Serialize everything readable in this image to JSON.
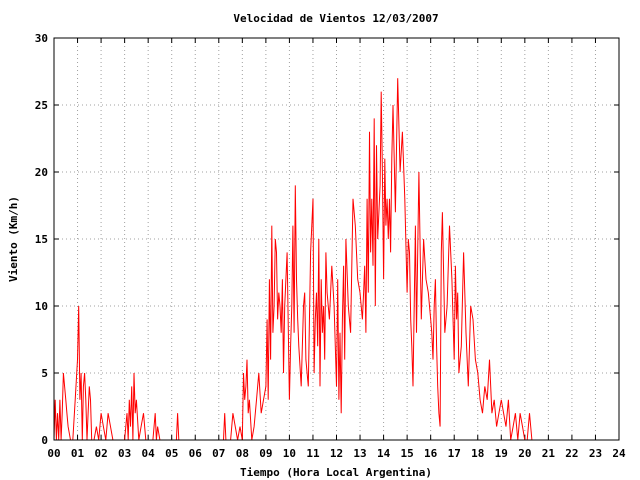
{
  "chart_data": {
    "type": "line",
    "title": "Velocidad de Vientos 12/03/2007",
    "xlabel": "Tiempo (Hora Local Argentina)",
    "ylabel": "Viento (Km/h)",
    "xlim": [
      0,
      24
    ],
    "ylim": [
      0,
      30
    ],
    "xticks": [
      "00",
      "01",
      "02",
      "03",
      "04",
      "05",
      "06",
      "07",
      "08",
      "09",
      "10",
      "11",
      "12",
      "13",
      "14",
      "15",
      "16",
      "17",
      "18",
      "19",
      "20",
      "21",
      "22",
      "23",
      "24"
    ],
    "yticks": [
      "0",
      "5",
      "10",
      "15",
      "20",
      "25",
      "30"
    ],
    "grid": true,
    "legend": "none",
    "series": [
      {
        "color": "#ff0000",
        "x": [
          0.0,
          0.05,
          0.1,
          0.15,
          0.2,
          0.25,
          0.3,
          0.35,
          0.4,
          0.45,
          0.5,
          0.55,
          0.6,
          0.7,
          0.8,
          0.9,
          1.0,
          1.05,
          1.1,
          1.15,
          1.2,
          1.25,
          1.3,
          1.35,
          1.4,
          1.45,
          1.5,
          1.55,
          1.6,
          1.7,
          1.8,
          1.9,
          2.0,
          2.1,
          2.2,
          2.3,
          2.5,
          2.8,
          3.0,
          3.1,
          3.15,
          3.2,
          3.25,
          3.3,
          3.35,
          3.4,
          3.45,
          3.5,
          3.6,
          3.7,
          3.8,
          3.9,
          4.0,
          4.2,
          4.3,
          4.35,
          4.4,
          4.5,
          4.8,
          5.0,
          5.2,
          5.25,
          5.3,
          5.6,
          6.0,
          6.4,
          6.8,
          7.0,
          7.2,
          7.25,
          7.3,
          7.5,
          7.6,
          7.8,
          7.9,
          8.0,
          8.05,
          8.1,
          8.15,
          8.2,
          8.25,
          8.3,
          8.4,
          8.5,
          8.6,
          8.7,
          8.8,
          8.9,
          9.0,
          9.05,
          9.1,
          9.15,
          9.2,
          9.25,
          9.3,
          9.35,
          9.4,
          9.45,
          9.5,
          9.55,
          9.6,
          9.65,
          9.7,
          9.75,
          9.8,
          9.9,
          10.0,
          10.05,
          10.1,
          10.15,
          10.2,
          10.25,
          10.3,
          10.35,
          10.4,
          10.5,
          10.6,
          10.65,
          10.7,
          10.8,
          10.9,
          11.0,
          11.05,
          11.1,
          11.15,
          11.2,
          11.25,
          11.3,
          11.35,
          11.4,
          11.45,
          11.5,
          11.55,
          11.6,
          11.7,
          11.8,
          11.9,
          12.0,
          12.05,
          12.1,
          12.15,
          12.2,
          12.25,
          12.3,
          12.35,
          12.4,
          12.5,
          12.6,
          12.7,
          12.8,
          12.9,
          13.0,
          13.05,
          13.1,
          13.15,
          13.2,
          13.25,
          13.3,
          13.35,
          13.4,
          13.45,
          13.5,
          13.55,
          13.6,
          13.65,
          13.7,
          13.75,
          13.8,
          13.85,
          13.9,
          13.95,
          14.0,
          14.05,
          14.1,
          14.15,
          14.2,
          14.25,
          14.3,
          14.35,
          14.4,
          14.5,
          14.6,
          14.7,
          14.8,
          14.9,
          15.0,
          15.05,
          15.1,
          15.15,
          15.2,
          15.25,
          15.3,
          15.35,
          15.4,
          15.5,
          15.6,
          15.7,
          15.8,
          15.9,
          16.0,
          16.05,
          16.1,
          16.15,
          16.2,
          16.25,
          16.3,
          16.35,
          16.4,
          16.45,
          16.5,
          16.6,
          16.7,
          16.8,
          16.9,
          17.0,
          17.05,
          17.1,
          17.15,
          17.2,
          17.3,
          17.4,
          17.5,
          17.6,
          17.7,
          17.8,
          17.9,
          18.0,
          18.1,
          18.2,
          18.3,
          18.4,
          18.5,
          18.6,
          18.7,
          18.8,
          18.9,
          19.0,
          19.1,
          19.2,
          19.3,
          19.4,
          19.5,
          19.6,
          19.7,
          19.8,
          19.9,
          20.0,
          20.1,
          20.2,
          20.3
        ],
        "y": [
          0,
          3,
          0,
          2,
          0,
          3,
          0,
          2,
          5,
          4,
          3,
          2,
          1,
          0,
          0,
          3,
          6,
          10,
          3,
          5,
          0,
          4,
          5,
          3,
          0,
          2,
          4,
          3,
          0,
          0,
          1,
          0,
          2,
          1,
          0,
          2,
          0,
          0,
          0,
          2,
          0,
          3,
          1,
          4,
          0,
          5,
          2,
          3,
          0,
          1,
          2,
          0,
          0,
          0,
          2,
          0,
          1,
          0,
          0,
          0,
          0,
          2,
          0,
          0,
          0,
          0,
          0,
          0,
          0,
          2,
          0,
          0,
          2,
          0,
          1,
          0,
          5,
          3,
          4,
          6,
          2,
          3,
          0,
          1,
          3,
          5,
          2,
          3,
          4,
          9,
          3,
          12,
          6,
          16,
          8,
          10,
          15,
          14,
          9,
          11,
          10,
          8,
          12,
          5,
          10,
          14,
          3,
          7,
          10,
          16,
          8,
          19,
          12,
          9,
          7,
          4,
          10,
          11,
          6,
          4,
          14,
          18,
          5,
          9,
          11,
          7,
          15,
          4,
          12,
          8,
          10,
          6,
          14,
          11,
          9,
          13,
          10,
          4,
          12,
          3,
          8,
          2,
          9,
          13,
          6,
          15,
          10,
          8,
          18,
          16,
          12,
          11,
          10,
          9,
          11,
          13,
          8,
          18,
          11,
          23,
          14,
          18,
          13,
          24,
          10,
          22,
          15,
          17,
          19,
          26,
          20,
          12,
          21,
          16,
          18,
          15,
          18,
          14,
          21,
          25,
          17,
          27,
          20,
          23,
          18,
          11,
          15,
          14,
          9,
          7,
          4,
          10,
          16,
          8,
          20,
          9,
          15,
          12,
          11,
          9,
          8,
          6,
          10,
          12,
          7,
          4,
          2,
          1,
          14,
          17,
          8,
          10,
          16,
          12,
          6,
          13,
          9,
          11,
          5,
          7,
          14,
          8,
          4,
          10,
          9,
          6,
          5,
          3,
          2,
          4,
          3,
          6,
          2,
          3,
          1,
          2,
          3,
          2,
          1,
          3,
          0,
          1,
          2,
          0,
          2,
          1,
          0,
          0,
          2,
          0
        ]
      }
    ]
  }
}
